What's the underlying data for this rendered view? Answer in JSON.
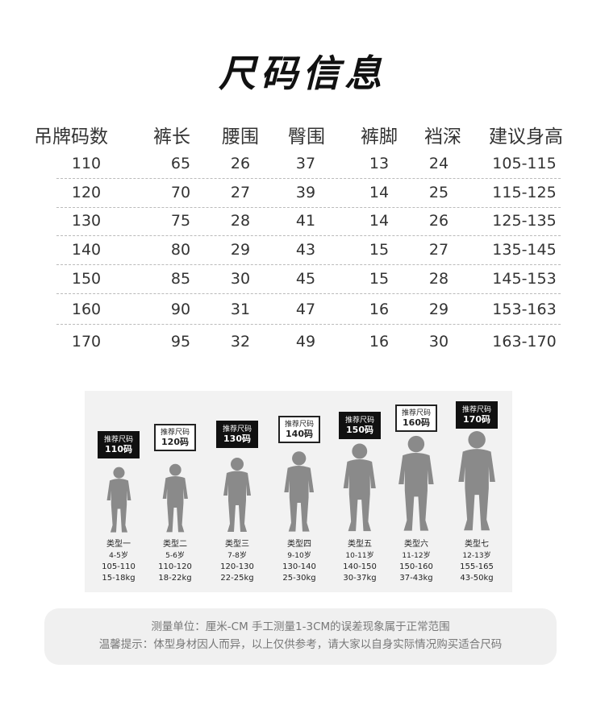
{
  "title": "尺码信息",
  "table": {
    "headers": [
      "吊牌码数",
      "裤长",
      "腰围",
      "臀围",
      "裤脚",
      "裆深",
      "建议身高"
    ],
    "rows": [
      [
        "110",
        "65",
        "26",
        "37",
        "13",
        "24",
        "105-115"
      ],
      [
        "120",
        "70",
        "27",
        "39",
        "14",
        "25",
        "115-125"
      ],
      [
        "130",
        "75",
        "28",
        "41",
        "14",
        "26",
        "125-135"
      ],
      [
        "140",
        "80",
        "29",
        "43",
        "15",
        "27",
        "135-145"
      ],
      [
        "150",
        "85",
        "30",
        "45",
        "15",
        "28",
        "145-153"
      ],
      [
        "160",
        "90",
        "31",
        "47",
        "16",
        "29",
        "153-163"
      ],
      [
        "170",
        "95",
        "32",
        "49",
        "16",
        "30",
        "163-170"
      ]
    ]
  },
  "figures": [
    {
      "bubble_label": "推荐尺码",
      "size": "110码",
      "style": "dark",
      "type": "类型一",
      "age": "4-5岁",
      "height": "105-110",
      "weight": "15-18kg"
    },
    {
      "bubble_label": "推荐尺码",
      "size": "120码",
      "style": "light",
      "type": "类型二",
      "age": "5-6岁",
      "height": "110-120",
      "weight": "18-22kg"
    },
    {
      "bubble_label": "推荐尺码",
      "size": "130码",
      "style": "dark",
      "type": "类型三",
      "age": "7-8岁",
      "height": "120-130",
      "weight": "22-25kg"
    },
    {
      "bubble_label": "推荐尺码",
      "size": "140码",
      "style": "light",
      "type": "类型四",
      "age": "9-10岁",
      "height": "130-140",
      "weight": "25-30kg"
    },
    {
      "bubble_label": "推荐尺码",
      "size": "150码",
      "style": "dark",
      "type": "类型五",
      "age": "10-11岁",
      "height": "140-150",
      "weight": "30-37kg"
    },
    {
      "bubble_label": "推荐尺码",
      "size": "160码",
      "style": "light",
      "type": "类型六",
      "age": "11-12岁",
      "height": "150-160",
      "weight": "37-43kg"
    },
    {
      "bubble_label": "推荐尺码",
      "size": "170码",
      "style": "dark",
      "type": "类型七",
      "age": "12-13岁",
      "height": "155-165",
      "weight": "43-50kg"
    }
  ],
  "note": {
    "line1": "测量单位：厘米-CM  手工测量1-3CM的误差现象属于正常范围",
    "line2": "温馨提示：体型身材因人而异，以上仅供参考，请大家以自身实际情况购买适合尺码"
  }
}
